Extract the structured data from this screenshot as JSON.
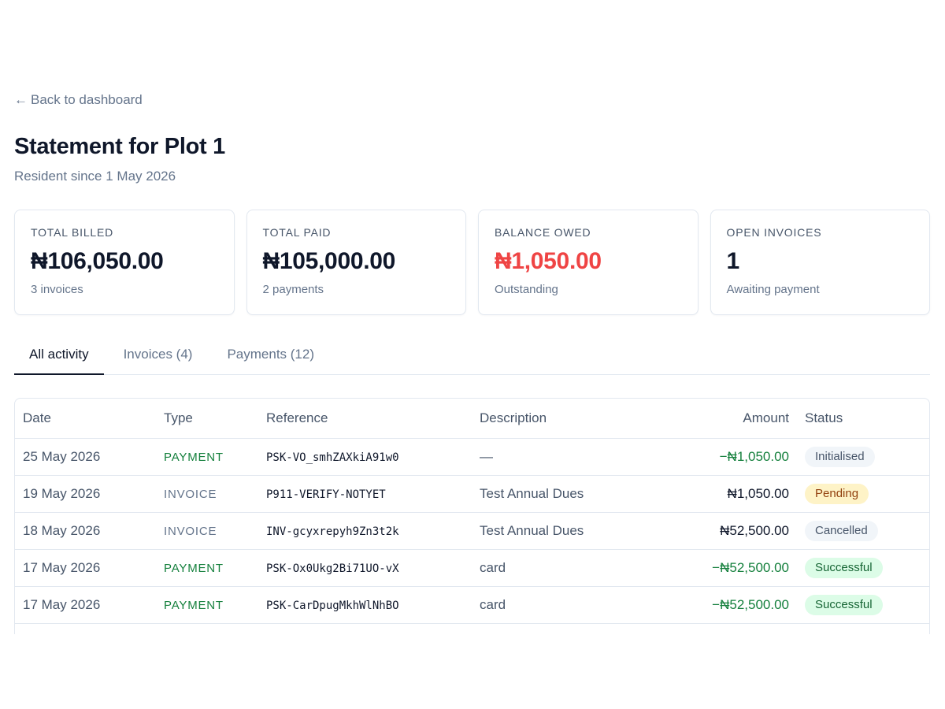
{
  "nav": {
    "back_arrow": "←",
    "back_label": "Back to dashboard"
  },
  "header": {
    "title": "Statement for Plot 1",
    "subtitle": "Resident since 1 May 2026"
  },
  "cards": [
    {
      "label": "TOTAL BILLED",
      "value": "₦106,050.00",
      "note": "3 invoices"
    },
    {
      "label": "TOTAL PAID",
      "value": "₦105,000.00",
      "note": "2 payments"
    },
    {
      "label": "BALANCE OWED",
      "value": "₦1,050.00",
      "note": "Outstanding",
      "value_color": "#ef4444"
    },
    {
      "label": "OPEN INVOICES",
      "value": "1",
      "note": "Awaiting payment"
    }
  ],
  "tabs": [
    {
      "label": "All activity",
      "active": true
    },
    {
      "label": "Invoices (4)"
    },
    {
      "label": "Payments (12)"
    }
  ],
  "table": {
    "columns": [
      "Date",
      "Type",
      "Reference",
      "Description",
      "Amount",
      "Status"
    ],
    "rows": [
      {
        "date": "25 May 2026",
        "type": "PAYMENT",
        "reference": "PSK-VO_smhZAXkiA91w0",
        "description": "—",
        "amount": "−₦1,050.00",
        "status": "Initialised"
      },
      {
        "date": "19 May 2026",
        "type": "INVOICE",
        "reference": "P911-VERIFY-NOTYET",
        "description": "Test Annual Dues",
        "amount": "₦1,050.00",
        "status": "Pending"
      },
      {
        "date": "18 May 2026",
        "type": "INVOICE",
        "reference": "INV-gcyxrepyh9Zn3t2k",
        "description": "Test Annual Dues",
        "amount": "₦52,500.00",
        "status": "Cancelled"
      },
      {
        "date": "17 May 2026",
        "type": "PAYMENT",
        "reference": "PSK-Ox0Ukg2Bi71UO-vX",
        "description": "card",
        "amount": "−₦52,500.00",
        "status": "Successful"
      },
      {
        "date": "17 May 2026",
        "type": "PAYMENT",
        "reference": "PSK-CarDpugMkhWlNhBO",
        "description": "card",
        "amount": "−₦52,500.00",
        "status": "Successful"
      }
    ]
  },
  "colors": {
    "payment": "#15803d",
    "danger": "#ef4444",
    "pending_bg": "#fef3c7",
    "success_bg": "#dcfce7",
    "neutral_bg": "#f1f5f9"
  }
}
